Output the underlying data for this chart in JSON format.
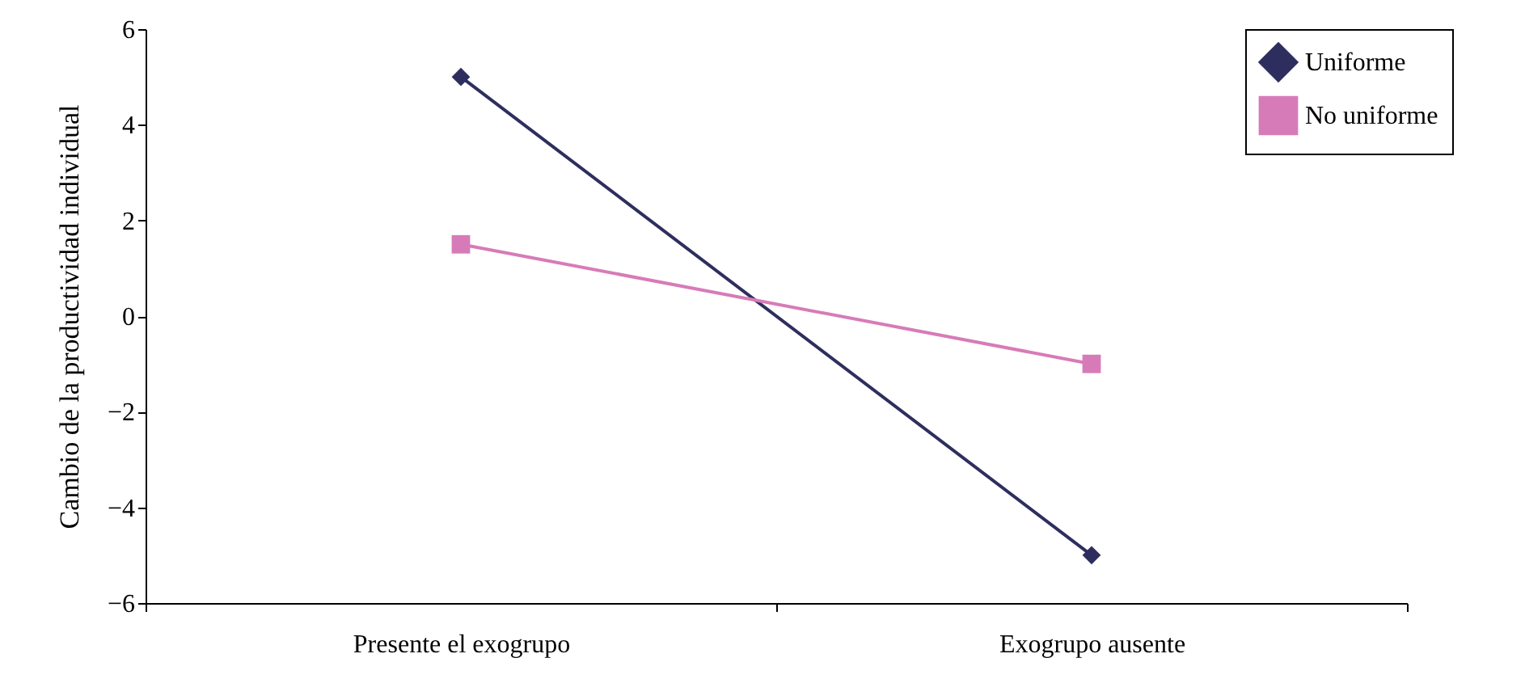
{
  "chart_data": {
    "type": "line",
    "ylabel": "Cambio de la productividad individual",
    "categories": [
      "Presente el exogrupo",
      "Exogrupo ausente"
    ],
    "series": [
      {
        "name": "Uniforme",
        "color": "#2e2e5e",
        "marker": "diamond",
        "values": [
          5.0,
          -5.0
        ]
      },
      {
        "name": "No uniforme",
        "color": "#d77bb8",
        "marker": "square",
        "values": [
          1.5,
          -1.0
        ]
      }
    ],
    "ylim": [
      -6,
      6
    ],
    "yticks": [
      {
        "value": -6,
        "label": "−6"
      },
      {
        "value": -4,
        "label": "−4"
      },
      {
        "value": -2,
        "label": "−2"
      },
      0,
      2,
      4,
      6
    ],
    "grid": false,
    "legend": "top right",
    "line_style": "solid"
  }
}
